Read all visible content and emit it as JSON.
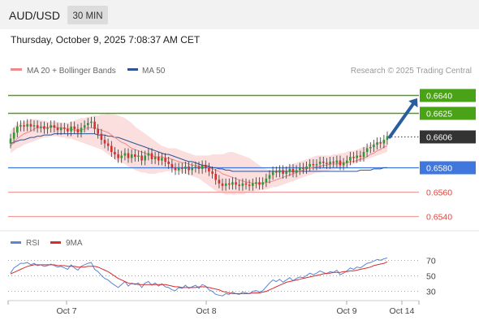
{
  "header": {
    "symbol": "AUD/USD",
    "timeframe": "30 MIN",
    "datetime": "Thursday, October 9, 2025 7:08:37 AM CET"
  },
  "legend": {
    "ma20": "MA 20 + Bollinger Bands",
    "ma50": "MA 50",
    "rsi": "RSI",
    "rsi_ma": "9MA",
    "credit": "Research © 2025 Trading Central"
  },
  "colors": {
    "resistance": "#4aa316",
    "pivot": "#3f77de",
    "support": "#f29c9c",
    "current_price": "#333333",
    "candle_up": "#2f9a2f",
    "candle_down": "#d83030",
    "bollinger_band": "#f8c2c2",
    "ma20": "#f08a8a",
    "ma50": "#2d5596",
    "rsi_line": "#5a86d6",
    "rsi_ma_line": "#d62d2d",
    "forecast_arrow": "#2a5da0"
  },
  "chart_data": [
    {
      "type": "candlestick",
      "title": "AUD/USD 30 MIN",
      "x_tick_labels": [
        "Oct 7",
        "Oct 8",
        "Oct 9",
        "Oct 14"
      ],
      "ylim": [
        0.6532,
        0.6652
      ],
      "grid": false,
      "legend_position": "top-left",
      "series": [
        {
          "name": "MA 20 + Bollinger Bands"
        },
        {
          "name": "MA 50"
        }
      ],
      "levels": [
        {
          "label": "0.6640",
          "value": 0.664,
          "kind": "resistance"
        },
        {
          "label": "0.6625",
          "value": 0.6625,
          "kind": "resistance"
        },
        {
          "label": "0.6606",
          "value": 0.6606,
          "kind": "current"
        },
        {
          "label": "0.6580",
          "value": 0.658,
          "kind": "pivot"
        },
        {
          "label": "0.6560",
          "value": 0.656,
          "kind": "support"
        },
        {
          "label": "0.6540",
          "value": 0.654,
          "kind": "support"
        }
      ],
      "close": [
        0.6604,
        0.6609,
        0.6614,
        0.6615,
        0.6614,
        0.6616,
        0.6614,
        0.6615,
        0.6613,
        0.6614,
        0.6612,
        0.6613,
        0.6615,
        0.6613,
        0.6611,
        0.6613,
        0.6612,
        0.661,
        0.6614,
        0.6612,
        0.6609,
        0.6613,
        0.6615,
        0.6617,
        0.6618,
        0.6612,
        0.6608,
        0.6603,
        0.66,
        0.6598,
        0.6593,
        0.6591,
        0.6588,
        0.659,
        0.6592,
        0.6588,
        0.6591,
        0.6589,
        0.659,
        0.6586,
        0.659,
        0.6592,
        0.6587,
        0.6589,
        0.6586,
        0.6588,
        0.6585,
        0.6583,
        0.658,
        0.6578,
        0.658,
        0.6579,
        0.6581,
        0.6578,
        0.658,
        0.6581,
        0.6579,
        0.6582,
        0.658,
        0.6577,
        0.6575,
        0.657,
        0.6567,
        0.6565,
        0.6567,
        0.6566,
        0.6568,
        0.6566,
        0.6565,
        0.6567,
        0.6566,
        0.6565,
        0.6567,
        0.6568,
        0.6566,
        0.6568,
        0.6571,
        0.6574,
        0.6577,
        0.6576,
        0.6578,
        0.6575,
        0.6577,
        0.6579,
        0.6576,
        0.6578,
        0.658,
        0.6579,
        0.6581,
        0.6583,
        0.6582,
        0.6583,
        0.6585,
        0.6584,
        0.6583,
        0.6585,
        0.6584,
        0.6586,
        0.6582,
        0.6584,
        0.6586,
        0.6589,
        0.6588,
        0.659,
        0.6589,
        0.6593,
        0.6596,
        0.6597,
        0.6599,
        0.6601,
        0.66,
        0.6603,
        0.6606
      ],
      "ma20": [
        0.6598,
        0.6601,
        0.6604,
        0.6606,
        0.6608,
        0.6609,
        0.661,
        0.6612,
        0.6613,
        0.6613,
        0.6614,
        0.6613,
        0.6614,
        0.6614,
        0.6613,
        0.6613,
        0.6613,
        0.6612,
        0.6612,
        0.6611,
        0.6611,
        0.6611,
        0.6612,
        0.6613,
        0.6613,
        0.6613,
        0.6612,
        0.6611,
        0.661,
        0.6609,
        0.6607,
        0.6605,
        0.6603,
        0.6601,
        0.66,
        0.6598,
        0.6596,
        0.6595,
        0.6594,
        0.6593,
        0.6592,
        0.6591,
        0.659,
        0.6589,
        0.6589,
        0.6589,
        0.6588,
        0.6588,
        0.6587,
        0.6586,
        0.6585,
        0.6584,
        0.6584,
        0.6583,
        0.6582,
        0.6582,
        0.6581,
        0.6581,
        0.6581,
        0.658,
        0.6579,
        0.6578,
        0.6577,
        0.6575,
        0.6574,
        0.6573,
        0.6572,
        0.6571,
        0.657,
        0.6569,
        0.6568,
        0.6568,
        0.6567,
        0.6567,
        0.6567,
        0.6567,
        0.6568,
        0.6568,
        0.6569,
        0.657,
        0.6571,
        0.6572,
        0.6573,
        0.6574,
        0.6575,
        0.6576,
        0.6577,
        0.6578,
        0.6579,
        0.658,
        0.658,
        0.6581,
        0.6581,
        0.6582,
        0.6582,
        0.6583,
        0.6583,
        0.6583,
        0.6584,
        0.6584,
        0.6584,
        0.6585,
        0.6585,
        0.6586,
        0.6587,
        0.6588,
        0.6589,
        0.6591,
        0.6592,
        0.6594,
        0.6595,
        0.6597,
        0.6598
      ],
      "bb_upper": [
        0.661,
        0.6614,
        0.6616,
        0.6617,
        0.6618,
        0.6619,
        0.662,
        0.662,
        0.662,
        0.6619,
        0.6619,
        0.6618,
        0.6618,
        0.6618,
        0.6618,
        0.6617,
        0.6617,
        0.6617,
        0.6618,
        0.6619,
        0.662,
        0.6621,
        0.6621,
        0.6622,
        0.6622,
        0.6623,
        0.6623,
        0.6624,
        0.6624,
        0.6625,
        0.6624,
        0.6624,
        0.6623,
        0.6622,
        0.6621,
        0.6619,
        0.6617,
        0.6614,
        0.6612,
        0.661,
        0.6608,
        0.6606,
        0.6604,
        0.6602,
        0.66,
        0.6598,
        0.6597,
        0.6596,
        0.6596,
        0.6596,
        0.6595,
        0.6594,
        0.6593,
        0.6592,
        0.6591,
        0.659,
        0.659,
        0.659,
        0.659,
        0.659,
        0.6591,
        0.6591,
        0.6591,
        0.6591,
        0.6592,
        0.6593,
        0.6593,
        0.6592,
        0.6591,
        0.659,
        0.6589,
        0.6588,
        0.6586,
        0.6584,
        0.6582,
        0.658,
        0.6579,
        0.6578,
        0.6578,
        0.6578,
        0.6579,
        0.658,
        0.6581,
        0.6582,
        0.6583,
        0.6584,
        0.6585,
        0.6586,
        0.6587,
        0.6588,
        0.6589,
        0.659,
        0.659,
        0.659,
        0.659,
        0.659,
        0.6591,
        0.6591,
        0.6592,
        0.6592,
        0.6593,
        0.6594,
        0.6594,
        0.6595,
        0.6596,
        0.6597,
        0.6598,
        0.6599,
        0.66,
        0.6601,
        0.6602,
        0.6603,
        0.6604
      ],
      "bb_lower": [
        0.6592,
        0.6594,
        0.6596,
        0.6597,
        0.6599,
        0.66,
        0.6601,
        0.6602,
        0.6603,
        0.6604,
        0.6605,
        0.6605,
        0.6606,
        0.6606,
        0.6606,
        0.6605,
        0.6605,
        0.6604,
        0.6604,
        0.6603,
        0.6602,
        0.6601,
        0.66,
        0.6599,
        0.6598,
        0.6597,
        0.6596,
        0.6595,
        0.6593,
        0.6591,
        0.6589,
        0.6587,
        0.6585,
        0.6584,
        0.6583,
        0.6581,
        0.658,
        0.6578,
        0.6577,
        0.6576,
        0.6576,
        0.6575,
        0.6575,
        0.6575,
        0.6576,
        0.6576,
        0.6577,
        0.6577,
        0.6578,
        0.6578,
        0.6577,
        0.6576,
        0.6575,
        0.6574,
        0.6573,
        0.6572,
        0.6571,
        0.6569,
        0.6567,
        0.6565,
        0.6563,
        0.6561,
        0.656,
        0.6559,
        0.6558,
        0.6558,
        0.6558,
        0.6558,
        0.6558,
        0.6558,
        0.6559,
        0.656,
        0.656,
        0.6561,
        0.6561,
        0.6562,
        0.6562,
        0.6563,
        0.6564,
        0.6564,
        0.6565,
        0.6566,
        0.6567,
        0.6568,
        0.6569,
        0.657,
        0.6571,
        0.6572,
        0.6573,
        0.6574,
        0.6575,
        0.6576,
        0.6576,
        0.6577,
        0.6577,
        0.6578,
        0.6578,
        0.6579,
        0.6579,
        0.658,
        0.6581,
        0.6582,
        0.6583,
        0.6584,
        0.6585,
        0.6586,
        0.6587,
        0.6588,
        0.6589,
        0.659,
        0.6591,
        0.6592,
        0.6593
      ],
      "ma50": [
        0.66,
        0.6601,
        0.6602,
        0.6603,
        0.6603,
        0.6604,
        0.6605,
        0.6605,
        0.6606,
        0.6606,
        0.6607,
        0.6607,
        0.6607,
        0.6608,
        0.6608,
        0.6608,
        0.6608,
        0.6608,
        0.6608,
        0.6608,
        0.6608,
        0.6608,
        0.6608,
        0.6608,
        0.6608,
        0.6608,
        0.6607,
        0.6607,
        0.6607,
        0.6606,
        0.6606,
        0.6605,
        0.6605,
        0.6604,
        0.6603,
        0.6602,
        0.6601,
        0.66,
        0.6599,
        0.6598,
        0.6597,
        0.6596,
        0.6595,
        0.6594,
        0.6593,
        0.6592,
        0.6591,
        0.6591,
        0.659,
        0.6589,
        0.6588,
        0.6587,
        0.6586,
        0.6585,
        0.6585,
        0.6584,
        0.6583,
        0.6582,
        0.6582,
        0.6581,
        0.658,
        0.658,
        0.6579,
        0.6579,
        0.6578,
        0.6578,
        0.6577,
        0.6577,
        0.6577,
        0.6577,
        0.6577,
        0.6577,
        0.6577,
        0.6577,
        0.6577,
        0.6577,
        0.6577,
        0.6577,
        0.6577,
        0.6577,
        0.6577,
        0.6577,
        0.6577,
        0.6577,
        0.6577,
        0.6577,
        0.6577,
        0.6577,
        0.6577,
        0.6577,
        0.6577,
        0.6577,
        0.6577,
        0.6577,
        0.6577,
        0.6577,
        0.6577,
        0.6577,
        0.6577,
        0.6577,
        0.6577,
        0.6577,
        0.6577,
        0.6577,
        0.6578,
        0.6578,
        0.6578,
        0.6578,
        0.6579,
        0.6579,
        0.6579,
        0.658,
        0.658
      ],
      "forecast": {
        "from": 0.6606,
        "to": 0.664
      }
    },
    {
      "type": "line",
      "title": "RSI",
      "ylim": [
        20,
        80
      ],
      "y_tick_labels": [
        "70",
        "50",
        "30"
      ],
      "series": [
        {
          "name": "RSI",
          "values": [
            53,
            60,
            63,
            66,
            66,
            67,
            64,
            66,
            63,
            64,
            62,
            63,
            65,
            63,
            61,
            62,
            60,
            58,
            64,
            60,
            57,
            62,
            64,
            66,
            67,
            58,
            55,
            50,
            46,
            44,
            40,
            37,
            34,
            38,
            42,
            36,
            40,
            38,
            40,
            34,
            40,
            42,
            37,
            40,
            36,
            39,
            35,
            34,
            31,
            30,
            34,
            33,
            37,
            33,
            35,
            37,
            33,
            38,
            36,
            31,
            29,
            25,
            24,
            23,
            26,
            25,
            28,
            26,
            25,
            28,
            27,
            26,
            29,
            30,
            28,
            30,
            35,
            40,
            44,
            42,
            45,
            41,
            44,
            47,
            43,
            46,
            48,
            47,
            50,
            53,
            51,
            53,
            56,
            54,
            52,
            55,
            54,
            57,
            51,
            53,
            56,
            60,
            58,
            61,
            60,
            63,
            66,
            67,
            69,
            71,
            70,
            72,
            73
          ]
        },
        {
          "name": "9MA",
          "values": [
            52,
            54,
            56,
            58,
            60,
            62,
            63,
            64,
            64,
            64,
            64,
            64,
            64,
            64,
            63,
            63,
            63,
            62,
            62,
            62,
            61,
            61,
            61,
            62,
            62,
            62,
            61,
            59,
            57,
            55,
            52,
            49,
            46,
            44,
            42,
            40,
            39,
            39,
            38,
            38,
            38,
            38,
            38,
            38,
            38,
            38,
            38,
            37,
            36,
            35,
            35,
            34,
            34,
            34,
            34,
            34,
            35,
            35,
            35,
            34,
            33,
            32,
            31,
            29,
            28,
            27,
            26,
            26,
            26,
            26,
            26,
            26,
            27,
            27,
            27,
            28,
            29,
            31,
            33,
            35,
            37,
            39,
            41,
            42,
            43,
            44,
            45,
            46,
            47,
            48,
            49,
            50,
            51,
            52,
            53,
            53,
            54,
            54,
            54,
            55,
            55,
            56,
            56,
            57,
            58,
            59,
            60,
            61,
            63,
            64,
            65,
            66,
            68
          ]
        }
      ]
    }
  ]
}
